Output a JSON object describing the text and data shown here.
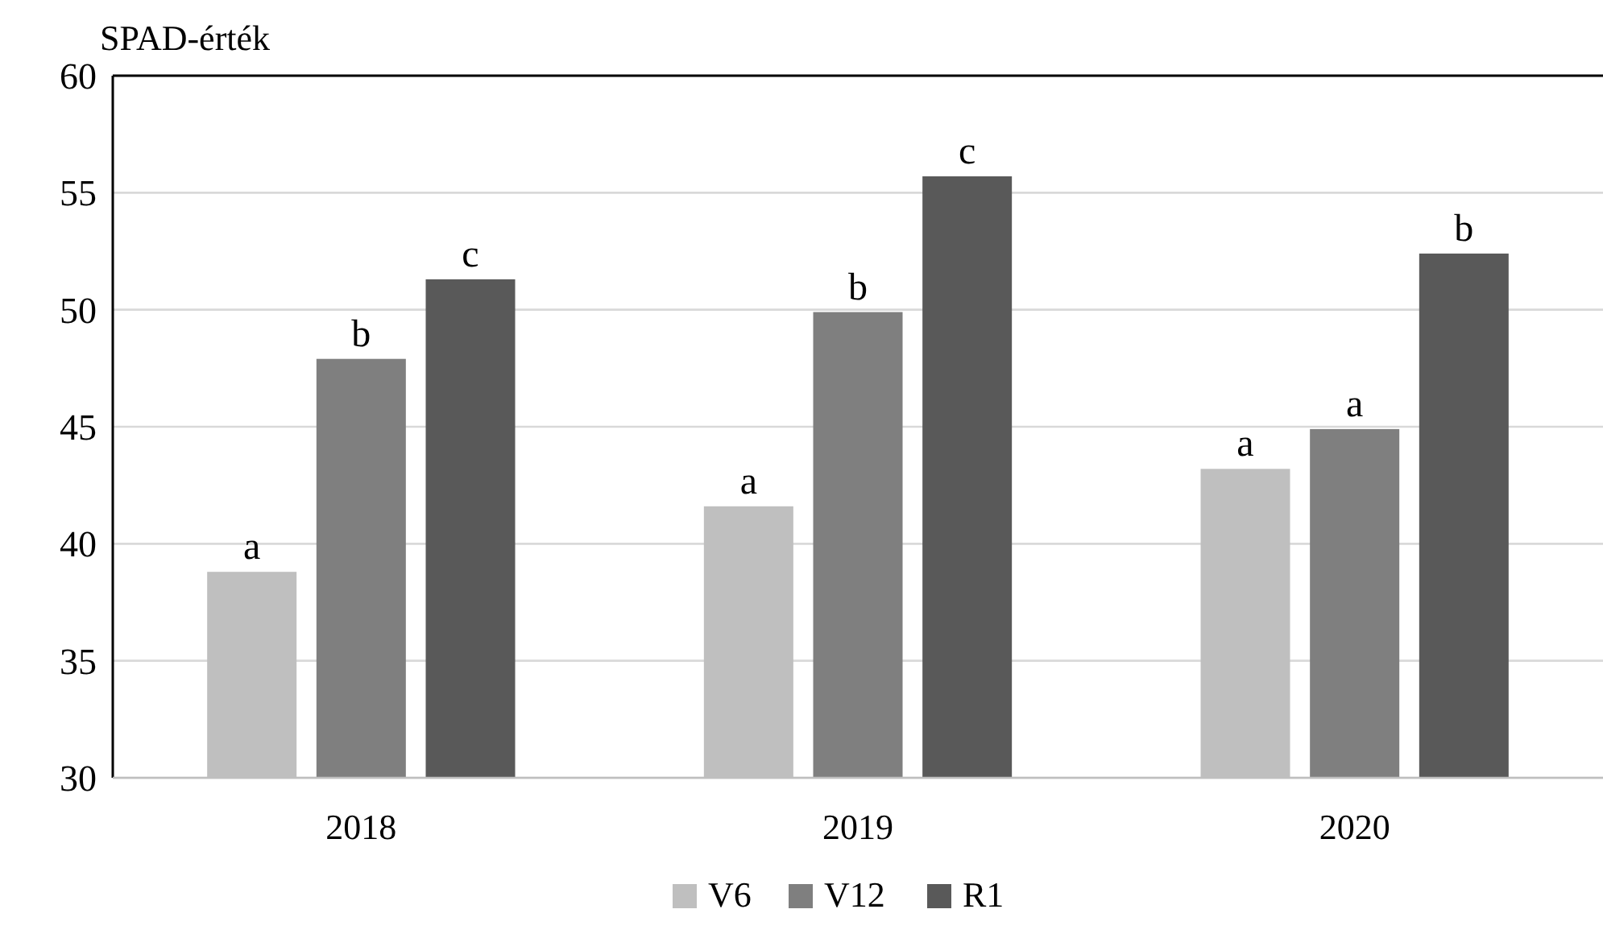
{
  "chart_data": {
    "type": "bar",
    "ylabel": "SPAD-érték",
    "categories": [
      "2018",
      "2019",
      "2020"
    ],
    "series": [
      {
        "name": "V6",
        "color": "#bfbfbf",
        "values": [
          38.8,
          41.6,
          43.2
        ]
      },
      {
        "name": "V12",
        "color": "#7f7f7f",
        "values": [
          47.9,
          49.9,
          44.9
        ]
      },
      {
        "name": "R1",
        "color": "#595959",
        "values": [
          51.3,
          55.7,
          52.4
        ]
      }
    ],
    "ylim": [
      30,
      60
    ],
    "yticks": [
      30,
      35,
      40,
      45,
      50,
      55,
      60
    ],
    "grid": "y",
    "legend": "bottom",
    "annotations": [
      "a",
      "b",
      "c",
      "a",
      "b",
      "c",
      "a",
      "a",
      "b"
    ]
  }
}
